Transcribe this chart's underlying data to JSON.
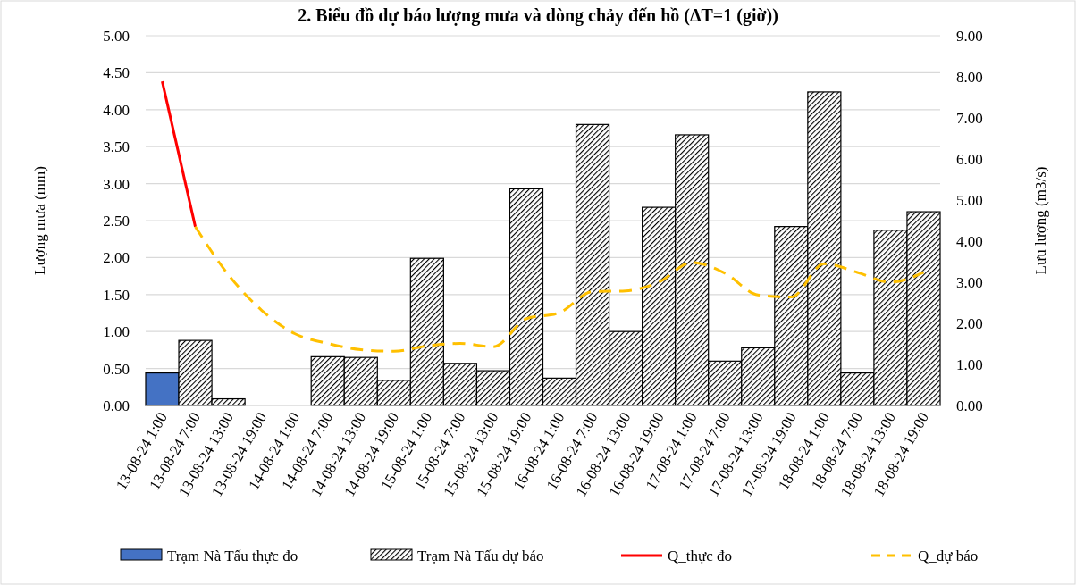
{
  "chart_data": {
    "type": "bar",
    "title": "2. Biểu đồ dự báo lượng mưa và dòng chảy đến hồ (ΔT=1 (giờ))",
    "ylabel": "Lượng mưa (mm)",
    "y2label": "Lưu lượng (m3/s)",
    "categories": [
      "13-08-24 1:00",
      "13-08-24 7:00",
      "13-08-24 13:00",
      "13-08-24 19:00",
      "14-08-24 1:00",
      "14-08-24 7:00",
      "14-08-24 13:00",
      "14-08-24 19:00",
      "15-08-24 1:00",
      "15-08-24 7:00",
      "15-08-24 13:00",
      "15-08-24 19:00",
      "16-08-24 1:00",
      "16-08-24 7:00",
      "16-08-24 13:00",
      "16-08-24 19:00",
      "17-08-24 1:00",
      "17-08-24 7:00",
      "17-08-24 13:00",
      "17-08-24 19:00",
      "18-08-24 1:00",
      "18-08-24 7:00",
      "18-08-24 13:00",
      "18-08-24 19:00"
    ],
    "series": [
      {
        "name": "Trạm Nà Tấu thực đo",
        "color": "#4472c4",
        "values": [
          0.44,
          null,
          null,
          null,
          null,
          null,
          null,
          null,
          null,
          null,
          null,
          null,
          null,
          null,
          null,
          null,
          null,
          null,
          null,
          null,
          null,
          null,
          null,
          null
        ]
      },
      {
        "name": "Trạm Nà Tấu dự báo",
        "color": "#000000",
        "values": [
          null,
          0.88,
          0.09,
          0,
          0,
          0.66,
          0.65,
          0.34,
          1.99,
          0.57,
          0.47,
          2.93,
          0.37,
          3.8,
          1.0,
          2.68,
          3.66,
          0.6,
          0.78,
          2.42,
          4.24,
          0.44,
          2.37,
          2.62
        ]
      },
      {
        "name": "Q_thực đo",
        "type": "line",
        "axis": "y2",
        "color": "#ff0000",
        "line_style": "solid",
        "values": [
          7.89,
          4.35,
          null,
          null,
          null,
          null,
          null,
          null,
          null,
          null,
          null,
          null,
          null,
          null,
          null,
          null,
          null,
          null,
          null,
          null,
          null,
          null,
          null,
          null
        ]
      },
      {
        "name": "Q_dự báo",
        "type": "line",
        "axis": "y2",
        "color": "#ffc000",
        "line_style": "dashed",
        "values": [
          null,
          4.35,
          3.18,
          2.32,
          1.75,
          1.51,
          1.36,
          1.32,
          1.45,
          1.51,
          1.43,
          2.11,
          2.26,
          2.77,
          2.79,
          3.0,
          3.48,
          3.22,
          2.69,
          2.64,
          3.45,
          3.24,
          3.0,
          3.24
        ]
      }
    ],
    "ylim": [
      0,
      5
    ],
    "yticks": [
      {
        "value": 0,
        "label": "0.00"
      },
      {
        "value": 0.5,
        "label": "0.50"
      },
      {
        "value": 1,
        "label": "1.00"
      },
      {
        "value": 1.5,
        "label": "1.50"
      },
      {
        "value": 2,
        "label": "2.00"
      },
      {
        "value": 2.5,
        "label": "2.50"
      },
      {
        "value": 3,
        "label": "3.00"
      },
      {
        "value": 3.5,
        "label": "3.50"
      },
      {
        "value": 4,
        "label": "4.00"
      },
      {
        "value": 4.5,
        "label": "4.50"
      },
      {
        "value": 5,
        "label": "5.00"
      }
    ],
    "y2lim": [
      0,
      9
    ],
    "y2ticks": [
      {
        "value": 0,
        "label": "0.00"
      },
      {
        "value": 1,
        "label": "1.00"
      },
      {
        "value": 2,
        "label": "2.00"
      },
      {
        "value": 3,
        "label": "3.00"
      },
      {
        "value": 4,
        "label": "4.00"
      },
      {
        "value": 5,
        "label": "5.00"
      },
      {
        "value": 6,
        "label": "6.00"
      },
      {
        "value": 7,
        "label": "7.00"
      },
      {
        "value": 8,
        "label": "8.00"
      },
      {
        "value": 9,
        "label": "9.00"
      }
    ],
    "grid": "y",
    "legend": "bottom"
  }
}
